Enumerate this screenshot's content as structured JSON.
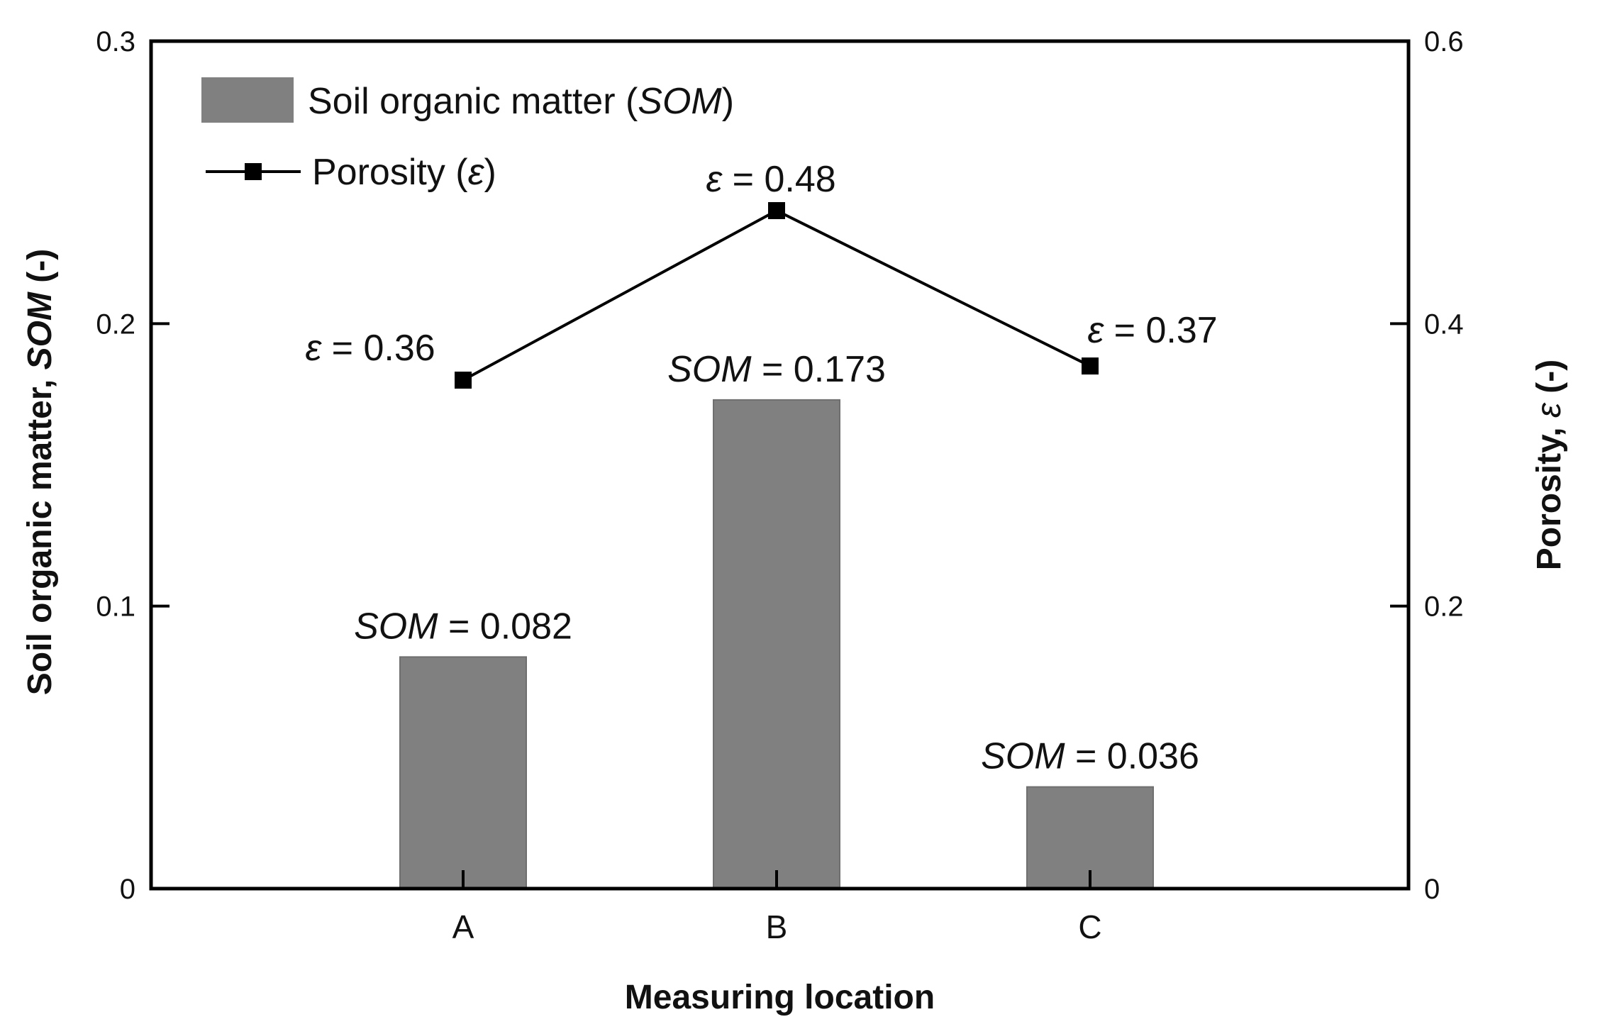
{
  "chart_data": {
    "type": "bar",
    "categories": [
      "A",
      "B",
      "C"
    ],
    "xlabel": "Measuring location",
    "series": [
      {
        "name_parts": [
          "Soil organic matter (",
          "SOM",
          ")"
        ],
        "kind": "bar",
        "axis": "left",
        "values": [
          0.082,
          0.173,
          0.036
        ],
        "color": "#808080"
      },
      {
        "name_parts": [
          "Porosity (",
          "ε",
          ")"
        ],
        "kind": "line",
        "marker": "square",
        "axis": "right",
        "values": [
          0.36,
          0.48,
          0.37
        ],
        "color": "#000000"
      }
    ],
    "y_left": {
      "label_parts": [
        "Soil organic matter, ",
        "SOM",
        " (-)"
      ],
      "ylim": [
        0,
        0.3
      ],
      "ticks": [
        "0",
        "0.1",
        "0.2",
        "0.3"
      ],
      "tick_values": [
        0,
        0.1,
        0.2,
        0.3
      ]
    },
    "y_right": {
      "label_parts": [
        "Porosity, ",
        "ε",
        " (-)"
      ],
      "ylim": [
        0,
        0.6
      ],
      "ticks": [
        "0",
        "0.2",
        "0.4",
        "0.6"
      ],
      "tick_values": [
        0,
        0.2,
        0.4,
        0.6
      ]
    },
    "bar_annotations": [
      {
        "var": "SOM",
        "text": " = 0.082"
      },
      {
        "var": "SOM",
        "text": " = 0.173"
      },
      {
        "var": "SOM",
        "text": " = 0.036"
      }
    ],
    "line_annotations": [
      {
        "var": "ε",
        "text": " = 0.36"
      },
      {
        "var": "ε",
        "text": " = 0.48"
      },
      {
        "var": "ε",
        "text": " = 0.37"
      }
    ],
    "legend_position": "top-left",
    "grid": false
  }
}
